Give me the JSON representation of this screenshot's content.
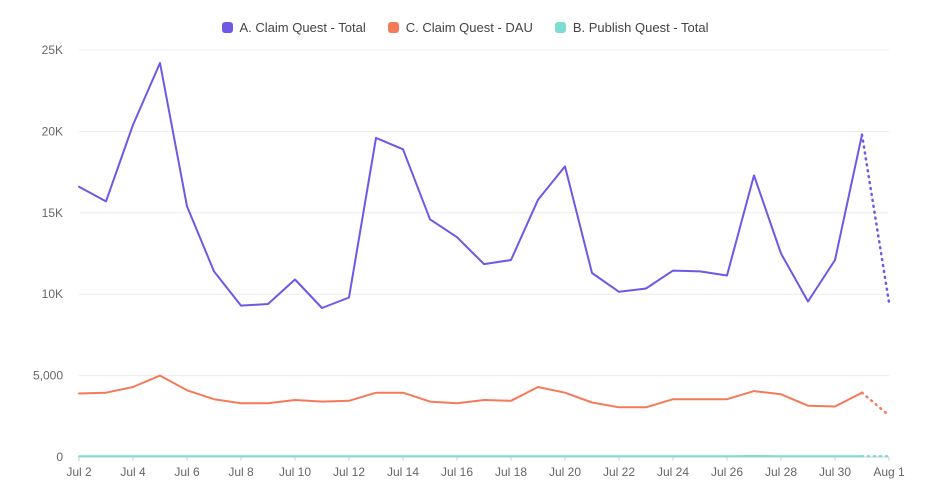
{
  "chart_data": {
    "type": "line",
    "title": "",
    "xlabel": "",
    "ylabel": "",
    "ylim": [
      0,
      25000
    ],
    "yticks": [
      0,
      5000,
      10000,
      15000,
      20000,
      25000
    ],
    "ytick_labels": [
      "0",
      "5,000",
      "10K",
      "15K",
      "20K",
      "25K"
    ],
    "x": [
      "Jul 2",
      "Jul 3",
      "Jul 4",
      "Jul 5",
      "Jul 6",
      "Jul 7",
      "Jul 8",
      "Jul 9",
      "Jul 10",
      "Jul 11",
      "Jul 12",
      "Jul 13",
      "Jul 14",
      "Jul 15",
      "Jul 16",
      "Jul 17",
      "Jul 18",
      "Jul 19",
      "Jul 20",
      "Jul 21",
      "Jul 22",
      "Jul 23",
      "Jul 24",
      "Jul 25",
      "Jul 26",
      "Jul 27",
      "Jul 28",
      "Jul 29",
      "Jul 30",
      "Jul 31",
      "Aug 1"
    ],
    "xtick_labels": [
      "Jul 2",
      "Jul 4",
      "Jul 6",
      "Jul 8",
      "Jul 10",
      "Jul 12",
      "Jul 14",
      "Jul 16",
      "Jul 18",
      "Jul 20",
      "Jul 22",
      "Jul 24",
      "Jul 26",
      "Jul 28",
      "Jul 30",
      "Aug 1"
    ],
    "grid": true,
    "legend_position": "top-center",
    "partial_last_point": true,
    "series": [
      {
        "name": "A. Claim Quest - Total",
        "color": "#7057e6",
        "values": [
          16600,
          15700,
          20400,
          24200,
          15400,
          11400,
          9300,
          9400,
          10900,
          9150,
          9800,
          19600,
          18900,
          14600,
          13500,
          11850,
          12100,
          15800,
          17850,
          11300,
          10150,
          10350,
          11450,
          11400,
          11150,
          17300,
          12500,
          9550,
          12100,
          19800,
          9500
        ]
      },
      {
        "name": "C. Claim Quest - DAU",
        "color": "#f47a5a",
        "values": [
          3900,
          3950,
          4300,
          5000,
          4100,
          3550,
          3300,
          3300,
          3500,
          3400,
          3450,
          3950,
          3950,
          3400,
          3300,
          3500,
          3450,
          4300,
          3950,
          3350,
          3050,
          3050,
          3550,
          3550,
          3550,
          4050,
          3850,
          3150,
          3100,
          3950,
          2550
        ]
      },
      {
        "name": "B. Publish Quest - Total",
        "color": "#7fdcd3",
        "values": [
          50,
          50,
          50,
          50,
          50,
          50,
          50,
          50,
          50,
          50,
          50,
          50,
          50,
          50,
          50,
          50,
          50,
          50,
          50,
          50,
          50,
          50,
          50,
          50,
          50,
          60,
          50,
          50,
          50,
          50,
          50
        ]
      }
    ]
  }
}
